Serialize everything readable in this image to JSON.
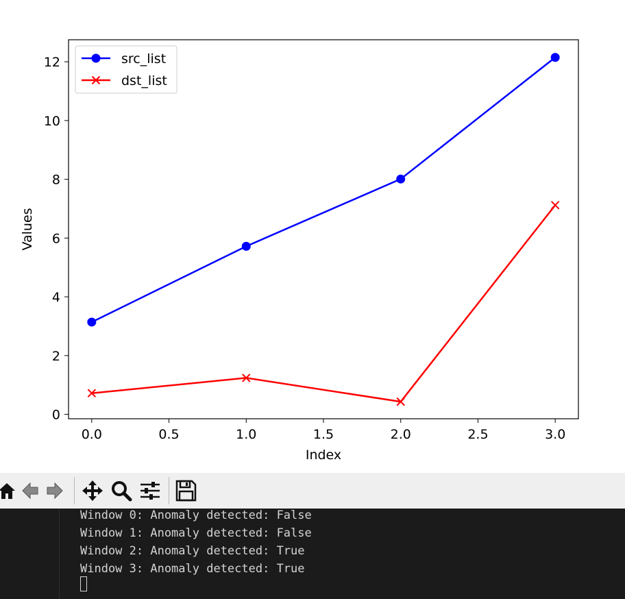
{
  "chart_data": {
    "type": "line",
    "xlabel": "Index",
    "ylabel": "Values",
    "xlim": [
      -0.15,
      3.15
    ],
    "ylim": [
      -0.15,
      12.75
    ],
    "xticks": [
      0.0,
      0.5,
      1.0,
      1.5,
      2.0,
      2.5,
      3.0
    ],
    "xtick_labels": [
      "0.0",
      "0.5",
      "1.0",
      "1.5",
      "2.0",
      "2.5",
      "3.0"
    ],
    "yticks": [
      0,
      2,
      4,
      6,
      8,
      10,
      12
    ],
    "ytick_labels": [
      "0",
      "2",
      "4",
      "6",
      "8",
      "10",
      "12"
    ],
    "grid": false,
    "legend_position": "upper-left",
    "series": [
      {
        "name": "src_list",
        "color": "#0000ff",
        "marker": "circle",
        "x": [
          0,
          1,
          2,
          3
        ],
        "values": [
          3.14,
          5.72,
          8.01,
          12.15
        ]
      },
      {
        "name": "dst_list",
        "color": "#ff0000",
        "marker": "x",
        "x": [
          0,
          1,
          2,
          3
        ],
        "values": [
          0.72,
          1.24,
          0.43,
          7.12
        ]
      }
    ]
  },
  "toolbar": {
    "buttons": [
      {
        "name": "home",
        "icon": "home-icon"
      },
      {
        "name": "back",
        "icon": "arrow-left-icon"
      },
      {
        "name": "forward",
        "icon": "arrow-right-icon"
      },
      {
        "name": "pan",
        "icon": "move-icon"
      },
      {
        "name": "zoom",
        "icon": "magnifier-icon"
      },
      {
        "name": "configure-subplots",
        "icon": "sliders-icon"
      },
      {
        "name": "save",
        "icon": "floppy-disk-icon"
      }
    ]
  },
  "terminal": {
    "lines": [
      "Window 0: Anomaly detected: False",
      "Window 1: Anomaly detected: False",
      "Window 2: Anomaly detected: True",
      "Window 3: Anomaly detected: True"
    ]
  }
}
